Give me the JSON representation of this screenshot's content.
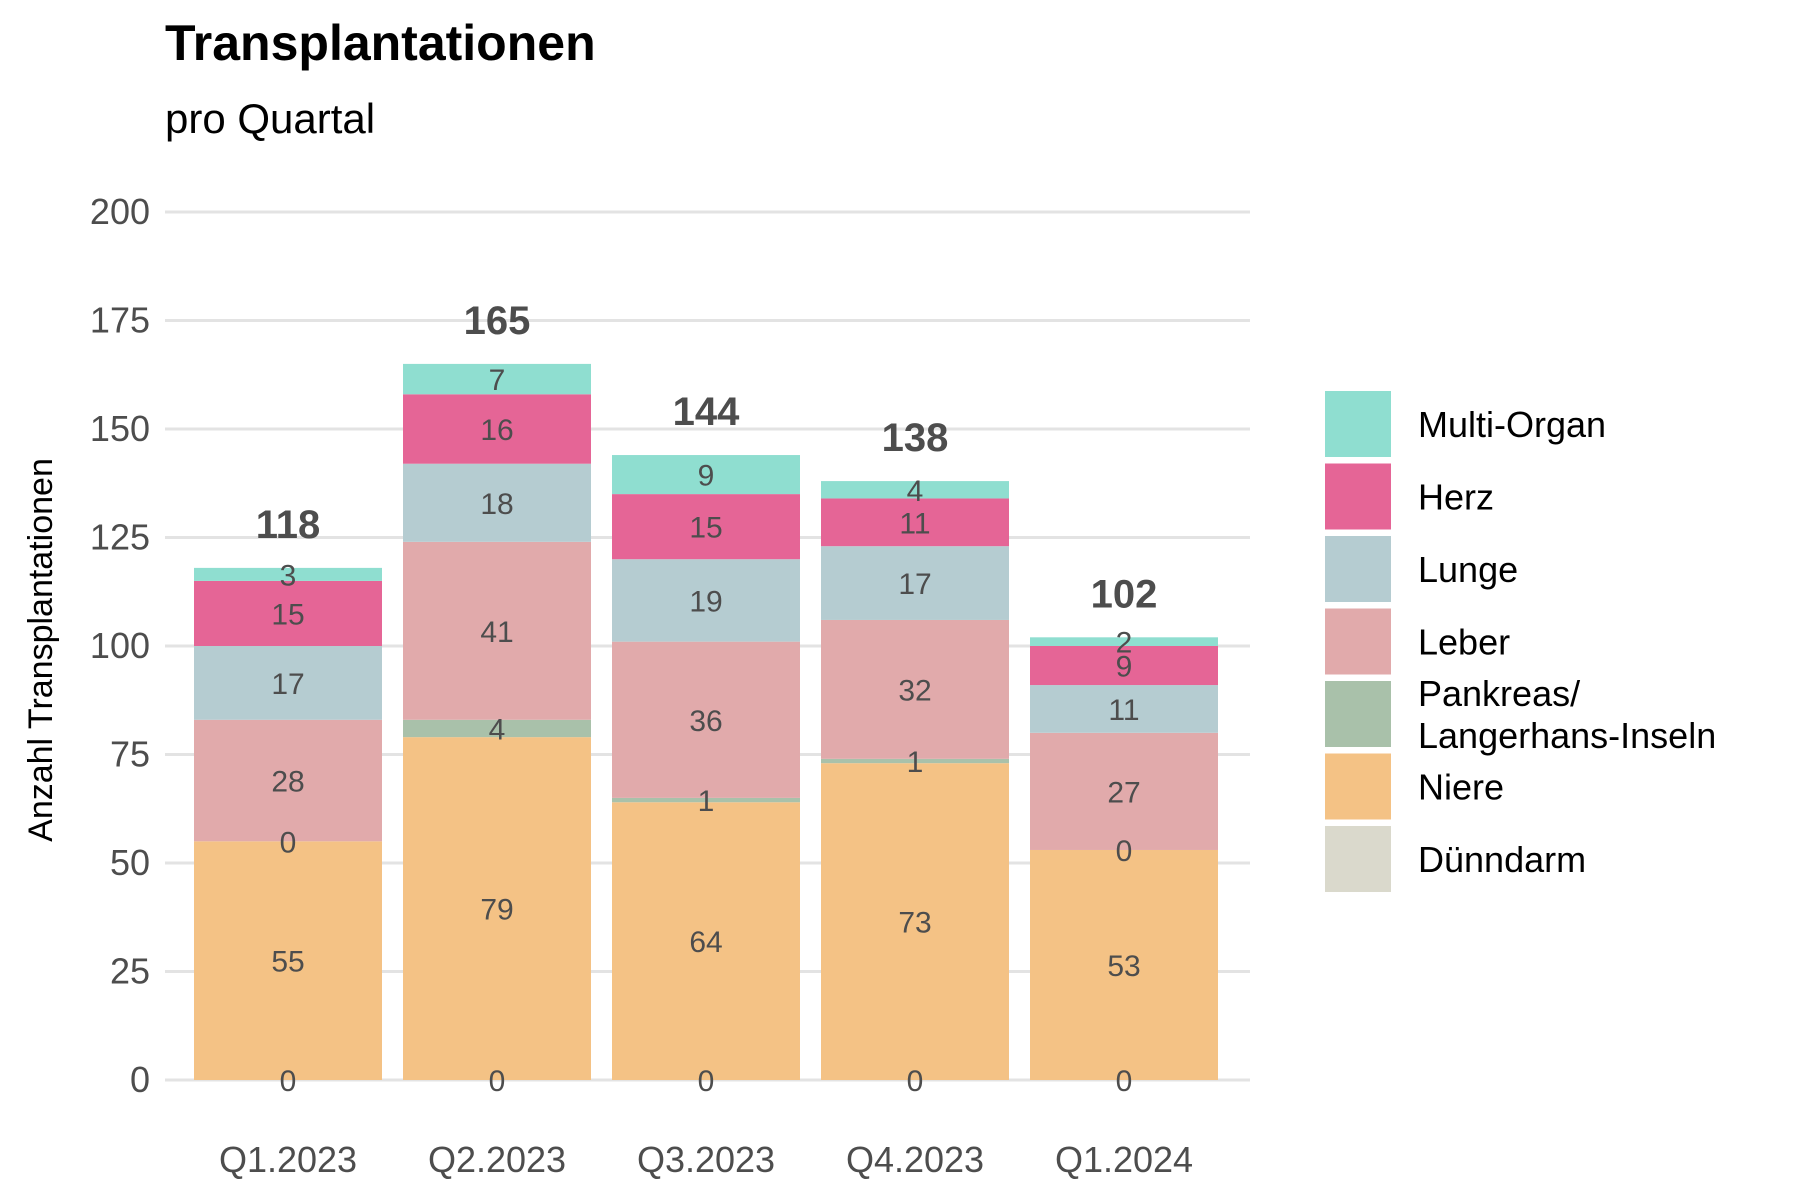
{
  "chart_data": {
    "type": "bar",
    "stacked": true,
    "title": "Transplantationen",
    "subtitle": "pro Quartal",
    "xlabel": "",
    "ylabel": "Anzahl Transplantationen",
    "ylim": [
      0,
      200
    ],
    "yticks": [
      0,
      25,
      50,
      75,
      100,
      125,
      150,
      175,
      200
    ],
    "grid": "horizontal",
    "legend_position": "right",
    "categories": [
      "Q1.2023",
      "Q2.2023",
      "Q3.2023",
      "Q4.2023",
      "Q1.2024"
    ],
    "totals": [
      118,
      165,
      144,
      138,
      102
    ],
    "series": [
      {
        "name": "Dünndarm",
        "color": "#dad9cc",
        "values": [
          0,
          0,
          0,
          0,
          0
        ]
      },
      {
        "name": "Niere",
        "color": "#f4c285",
        "values": [
          55,
          79,
          64,
          73,
          53
        ]
      },
      {
        "name": "Pankreas/\nLangerhans-Inseln",
        "color": "#a9c1aa",
        "values": [
          0,
          4,
          1,
          1,
          0
        ]
      },
      {
        "name": "Leber",
        "color": "#e1aaab",
        "values": [
          28,
          41,
          36,
          32,
          27
        ]
      },
      {
        "name": "Lunge",
        "color": "#b5ccd1",
        "values": [
          17,
          18,
          19,
          17,
          11
        ]
      },
      {
        "name": "Herz",
        "color": "#e56596",
        "values": [
          15,
          16,
          15,
          11,
          9
        ]
      },
      {
        "name": "Multi-Organ",
        "color": "#8fded0",
        "values": [
          3,
          7,
          9,
          4,
          2
        ]
      }
    ],
    "legend_order": [
      "Multi-Organ",
      "Herz",
      "Lunge",
      "Leber",
      "Pankreas/\nLangerhans-Inseln",
      "Niere",
      "Dünndarm"
    ]
  }
}
